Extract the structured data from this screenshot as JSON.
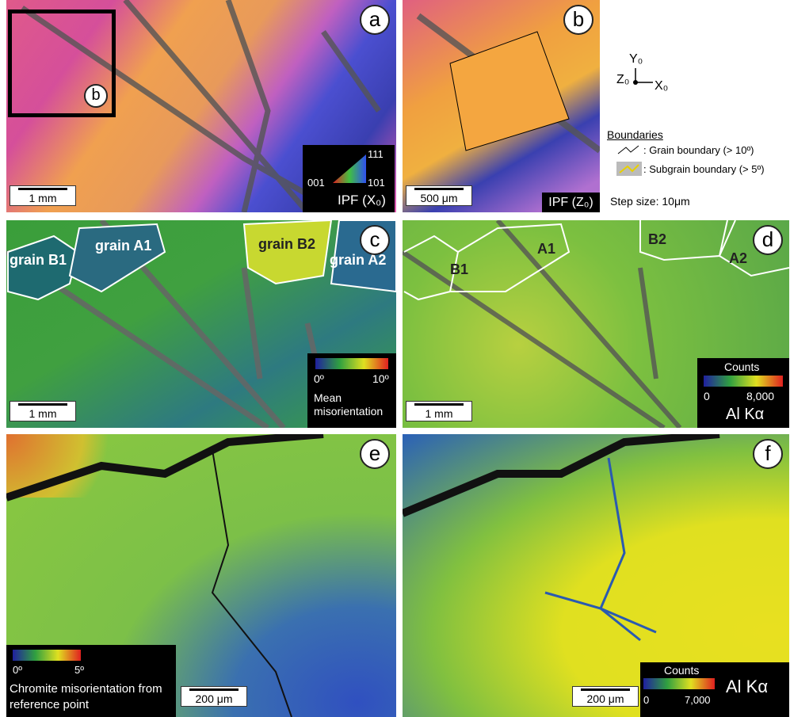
{
  "panels": {
    "a": {
      "letter": "a",
      "inset": "b",
      "scale": "1 mm",
      "legend": {
        "top": "111",
        "left": "001",
        "right": "101",
        "caption": "IPF (X₀)"
      }
    },
    "b": {
      "letter": "b",
      "scale": "500 μm",
      "caption": "IPF (Z₀)"
    },
    "c": {
      "letter": "c",
      "scale": "1 mm",
      "grains": [
        "grain B1",
        "grain A1",
        "grain B2",
        "grain A2"
      ],
      "legend": {
        "min": "0º",
        "max": "10º",
        "caption": "Mean misorientation"
      }
    },
    "d": {
      "letter": "d",
      "scale": "1 mm",
      "grains": [
        "B1",
        "A1",
        "B2",
        "A2"
      ],
      "legend": {
        "title": "Counts",
        "min": "0",
        "max": "8,000",
        "caption": "Al Kα"
      }
    },
    "e": {
      "letter": "e",
      "scale": "200 μm",
      "legend": {
        "min": "0º",
        "max": "5º",
        "caption": "Chromite misorientation from reference point"
      }
    },
    "f": {
      "letter": "f",
      "scale": "200 μm",
      "legend": {
        "title": "Counts",
        "min": "0",
        "max": "7,000",
        "caption": "Al Kα"
      }
    }
  },
  "key": {
    "axes": {
      "y": "Y₀",
      "z": "Z₀",
      "x": "X₀"
    },
    "title": "Boundaries",
    "grain": ": Grain boundary (> 10º)",
    "subgrain": ": Subgrain boundary (> 5º)",
    "step": "Step size: 10μm"
  }
}
